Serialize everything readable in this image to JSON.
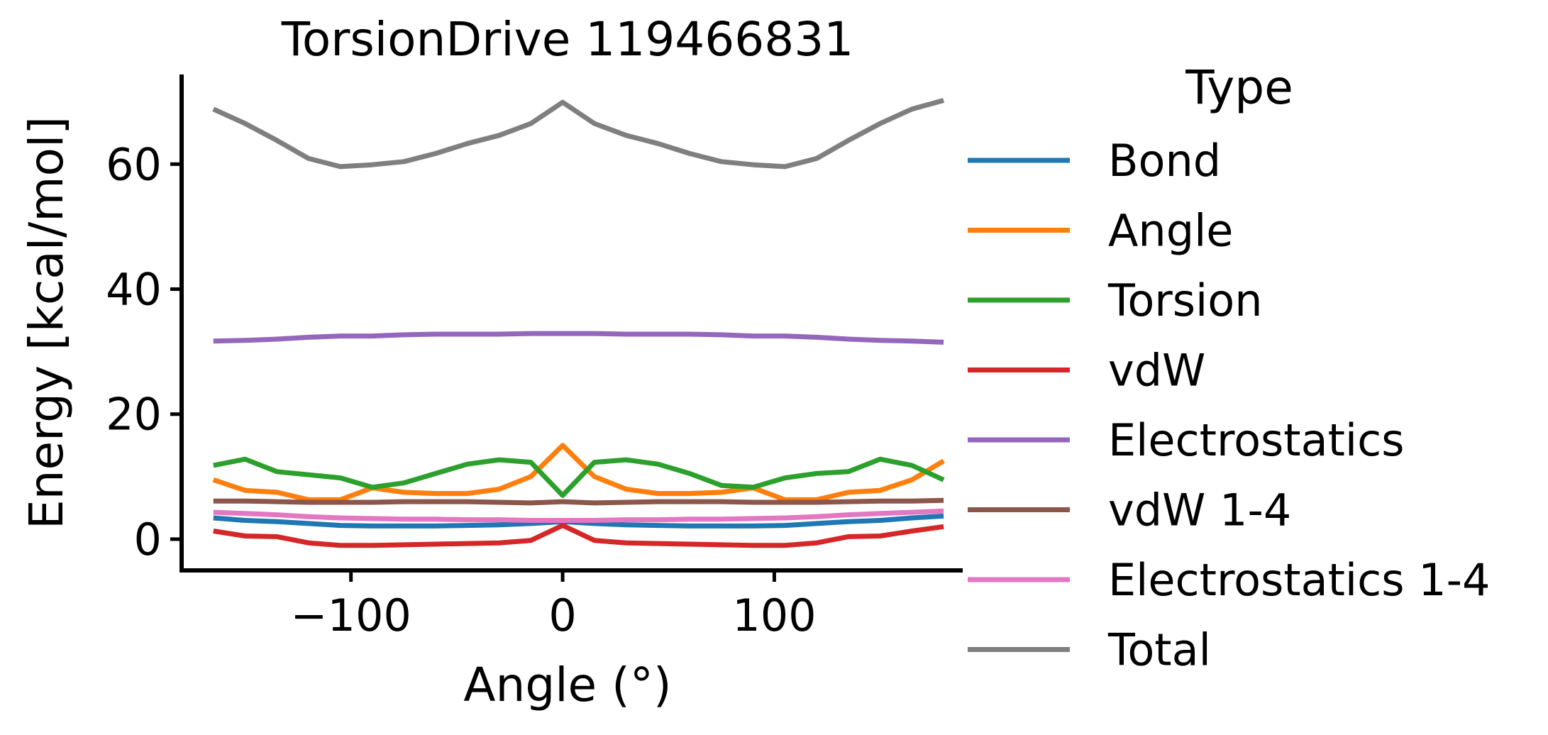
{
  "chart_data": {
    "type": "line",
    "title": "TorsionDrive 119466831",
    "xlabel": "Angle (°)",
    "ylabel": "Energy [kcal/mol]",
    "xlim": [
      -180,
      188
    ],
    "ylim": [
      -5,
      74
    ],
    "xticks": [
      -100,
      0,
      100
    ],
    "xtick_labels": [
      "−100",
      "0",
      "100"
    ],
    "yticks": [
      0,
      20,
      40,
      60
    ],
    "ytick_labels": [
      "0",
      "20",
      "40",
      "60"
    ],
    "grid": false,
    "legend_title": "Type",
    "legend_position": "right",
    "x": [
      -165,
      -150,
      -135,
      -120,
      -105,
      -90,
      -75,
      -60,
      -45,
      -30,
      -15,
      0,
      15,
      30,
      45,
      60,
      75,
      90,
      105,
      120,
      135,
      150,
      165,
      180
    ],
    "series": [
      {
        "name": "Bond",
        "color": "#1f77b4",
        "values": [
          3.4,
          3.0,
          2.8,
          2.5,
          2.2,
          2.1,
          2.1,
          2.1,
          2.2,
          2.3,
          2.5,
          2.8,
          2.5,
          2.3,
          2.2,
          2.1,
          2.1,
          2.1,
          2.2,
          2.5,
          2.8,
          3.0,
          3.4,
          3.7
        ]
      },
      {
        "name": "Angle",
        "color": "#ff7f0e",
        "values": [
          9.5,
          7.8,
          7.5,
          6.3,
          6.3,
          8.2,
          7.5,
          7.3,
          7.3,
          8.0,
          10.0,
          15.0,
          10.0,
          8.0,
          7.3,
          7.3,
          7.5,
          8.2,
          6.3,
          6.3,
          7.5,
          7.8,
          9.5,
          12.5
        ]
      },
      {
        "name": "Torsion",
        "color": "#2ca02c",
        "values": [
          11.8,
          12.8,
          10.8,
          10.3,
          9.8,
          8.3,
          9.0,
          10.5,
          12.0,
          12.7,
          12.3,
          7.0,
          12.3,
          12.7,
          12.0,
          10.5,
          8.6,
          8.3,
          9.8,
          10.5,
          10.8,
          12.8,
          11.8,
          9.5
        ]
      },
      {
        "name": "vdW",
        "color": "#d62728",
        "values": [
          1.3,
          0.5,
          0.4,
          -0.6,
          -1.0,
          -1.0,
          -0.9,
          -0.8,
          -0.7,
          -0.6,
          -0.2,
          2.2,
          -0.2,
          -0.6,
          -0.7,
          -0.8,
          -0.9,
          -1.0,
          -1.0,
          -0.6,
          0.4,
          0.5,
          1.3,
          2.0
        ]
      },
      {
        "name": "Electrostatics",
        "color": "#9467bd",
        "values": [
          31.7,
          31.8,
          32.0,
          32.3,
          32.5,
          32.5,
          32.7,
          32.8,
          32.8,
          32.8,
          32.9,
          32.9,
          32.9,
          32.8,
          32.8,
          32.8,
          32.7,
          32.5,
          32.5,
          32.3,
          32.0,
          31.8,
          31.7,
          31.5
        ]
      },
      {
        "name": "vdW 1-4",
        "color": "#8c564b",
        "values": [
          6.1,
          6.1,
          6.0,
          5.9,
          5.9,
          5.9,
          6.0,
          6.0,
          6.0,
          5.9,
          5.8,
          6.0,
          5.8,
          5.9,
          6.0,
          6.0,
          6.0,
          5.9,
          5.9,
          5.9,
          6.0,
          6.1,
          6.1,
          6.2
        ]
      },
      {
        "name": "Electrostatics 1-4",
        "color": "#e377c2",
        "values": [
          4.3,
          4.1,
          3.9,
          3.6,
          3.4,
          3.3,
          3.2,
          3.2,
          3.1,
          3.1,
          3.0,
          3.0,
          3.0,
          3.1,
          3.1,
          3.2,
          3.2,
          3.3,
          3.4,
          3.6,
          3.9,
          4.1,
          4.3,
          4.5
        ]
      },
      {
        "name": "Total",
        "color": "#7f7f7f",
        "values": [
          68.8,
          66.5,
          63.8,
          60.9,
          59.6,
          59.9,
          60.4,
          61.7,
          63.3,
          64.6,
          66.5,
          69.9,
          66.5,
          64.6,
          63.3,
          61.7,
          60.4,
          59.9,
          59.6,
          60.9,
          63.8,
          66.5,
          68.8,
          70.2
        ]
      }
    ]
  }
}
